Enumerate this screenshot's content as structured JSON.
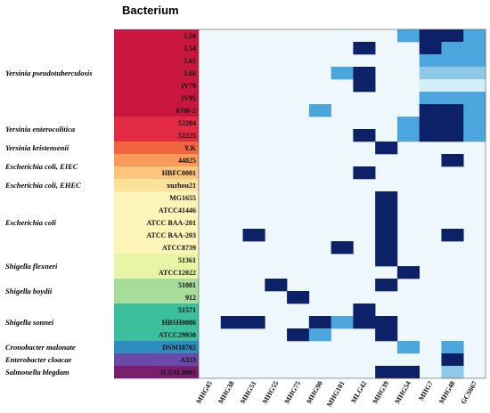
{
  "chart_data": {
    "type": "heatmap",
    "title": "Bacterium",
    "columns": [
      "MHG45",
      "MHG38",
      "MHG51",
      "MHG55",
      "MHG75",
      "MHG90",
      "MHG101",
      "MLG42",
      "MHG39",
      "MHG54",
      "MHG7",
      "MHG48",
      "GCS667"
    ],
    "rows": [
      {
        "strain": "I.50",
        "color": "#c8163f"
      },
      {
        "strain": "I.54",
        "color": "#c8163f"
      },
      {
        "strain": "I.61",
        "color": "#c8163f"
      },
      {
        "strain": "I.66",
        "color": "#c8163f"
      },
      {
        "strain": "IV79",
        "color": "#c8163f"
      },
      {
        "strain": "IV95",
        "color": "#c8163f"
      },
      {
        "strain": "0706-2",
        "color": "#c8163f"
      },
      {
        "strain": "52204",
        "color": "#e32a45"
      },
      {
        "strain": "52225",
        "color": "#e32a45"
      },
      {
        "strain": "Y.K",
        "color": "#f2663f"
      },
      {
        "strain": "44825",
        "color": "#f79a5a"
      },
      {
        "strain": "HBFC0001",
        "color": "#fbc57e"
      },
      {
        "strain": "xuzhou21",
        "color": "#fce19a"
      },
      {
        "strain": "MG1655",
        "color": "#fdf4b8"
      },
      {
        "strain": "ATCC41446",
        "color": "#fdf4b8"
      },
      {
        "strain": "ATCC BAA-201",
        "color": "#fdf4b8"
      },
      {
        "strain": "ATCC BAA-203",
        "color": "#fdf4b8"
      },
      {
        "strain": "ATCC8739",
        "color": "#fdf4b8"
      },
      {
        "strain": "51361",
        "color": "#e9f5a6"
      },
      {
        "strain": "ATCC12022",
        "color": "#e9f5a6"
      },
      {
        "strain": "51081",
        "color": "#a8dc9d"
      },
      {
        "strain": "912",
        "color": "#a8dc9d"
      },
      {
        "strain": "51571",
        "color": "#3cbf9d"
      },
      {
        "strain": "HBSH0086",
        "color": "#3cbf9d"
      },
      {
        "strain": "ATCC29930",
        "color": "#3cbf9d"
      },
      {
        "strain": "DSM18702",
        "color": "#2f8cbf"
      },
      {
        "strain": "A333",
        "color": "#6a4aa8"
      },
      {
        "strain": "JLSAL0003",
        "color": "#7a1f6e"
      }
    ],
    "species": [
      {
        "name": "Yersinia pseudotuberculosis",
        "first_row": 0,
        "last_row": 6
      },
      {
        "name": "Yersinia enterocolitica",
        "first_row": 7,
        "last_row": 8
      },
      {
        "name": "Yersinia kristensenii",
        "first_row": 9,
        "last_row": 9
      },
      {
        "name": "Escherichia coli, EIEC",
        "first_row": 10,
        "last_row": 11
      },
      {
        "name": "Escherichia coli, EHEC",
        "first_row": 12,
        "last_row": 12
      },
      {
        "name": "Escherichia coli",
        "first_row": 13,
        "last_row": 17
      },
      {
        "name": "Shigella flexneri",
        "first_row": 18,
        "last_row": 19
      },
      {
        "name": "Shigella boydii",
        "first_row": 20,
        "last_row": 21
      },
      {
        "name": "Shigella sonnei",
        "first_row": 22,
        "last_row": 24
      },
      {
        "name": "Cronobacter malonate",
        "first_row": 25,
        "last_row": 25
      },
      {
        "name": "Enterobacter cloacae",
        "first_row": 26,
        "last_row": 26
      },
      {
        "name": "Salmonella blegdam",
        "first_row": 27,
        "last_row": 27
      }
    ],
    "level_colors": {
      "0": "#eef7fb",
      "1": "#d4eef9",
      "2": "#8ec9e8",
      "3": "#4aa6dc",
      "4": "#0c2168"
    },
    "values": [
      [
        0,
        0,
        0,
        0,
        0,
        0,
        0,
        0,
        0,
        3,
        4,
        4,
        3
      ],
      [
        0,
        0,
        0,
        0,
        0,
        0,
        0,
        4,
        0,
        0,
        4,
        3,
        3
      ],
      [
        0,
        0,
        0,
        0,
        0,
        0,
        0,
        0,
        0,
        0,
        3,
        3,
        3
      ],
      [
        0,
        0,
        0,
        0,
        0,
        0,
        3,
        4,
        0,
        0,
        2,
        2,
        2
      ],
      [
        0,
        0,
        0,
        0,
        0,
        0,
        0,
        4,
        0,
        0,
        1,
        1,
        1
      ],
      [
        0,
        0,
        0,
        0,
        0,
        0,
        0,
        0,
        0,
        0,
        3,
        3,
        3
      ],
      [
        0,
        0,
        0,
        0,
        0,
        3,
        0,
        0,
        0,
        0,
        4,
        4,
        3
      ],
      [
        0,
        0,
        0,
        0,
        0,
        0,
        0,
        0,
        0,
        3,
        4,
        4,
        3
      ],
      [
        0,
        0,
        0,
        0,
        0,
        0,
        0,
        4,
        0,
        3,
        4,
        4,
        3
      ],
      [
        0,
        0,
        0,
        0,
        0,
        0,
        0,
        0,
        4,
        0,
        0,
        0,
        0
      ],
      [
        0,
        0,
        0,
        0,
        0,
        0,
        0,
        0,
        0,
        0,
        0,
        4,
        0
      ],
      [
        0,
        0,
        0,
        0,
        0,
        0,
        0,
        4,
        0,
        0,
        0,
        0,
        0
      ],
      [
        0,
        0,
        0,
        0,
        0,
        0,
        0,
        0,
        0,
        0,
        0,
        0,
        0
      ],
      [
        0,
        0,
        0,
        0,
        0,
        0,
        0,
        0,
        4,
        0,
        0,
        0,
        0
      ],
      [
        0,
        0,
        0,
        0,
        0,
        0,
        0,
        0,
        4,
        0,
        0,
        0,
        0
      ],
      [
        0,
        0,
        0,
        0,
        0,
        0,
        0,
        0,
        4,
        0,
        0,
        0,
        0
      ],
      [
        0,
        0,
        4,
        0,
        0,
        0,
        0,
        0,
        4,
        0,
        0,
        4,
        0
      ],
      [
        0,
        0,
        0,
        0,
        0,
        0,
        4,
        0,
        4,
        0,
        0,
        0,
        0
      ],
      [
        0,
        0,
        0,
        0,
        0,
        0,
        0,
        0,
        4,
        0,
        0,
        0,
        0
      ],
      [
        0,
        0,
        0,
        0,
        0,
        0,
        0,
        0,
        0,
        4,
        0,
        0,
        0
      ],
      [
        0,
        0,
        0,
        4,
        0,
        0,
        0,
        0,
        4,
        0,
        0,
        0,
        0
      ],
      [
        0,
        0,
        0,
        0,
        4,
        0,
        0,
        0,
        0,
        0,
        0,
        0,
        0
      ],
      [
        0,
        0,
        0,
        0,
        0,
        0,
        0,
        4,
        0,
        0,
        0,
        0,
        0
      ],
      [
        0,
        4,
        4,
        0,
        0,
        4,
        3,
        4,
        4,
        0,
        0,
        0,
        0
      ],
      [
        0,
        0,
        0,
        0,
        4,
        3,
        0,
        0,
        4,
        0,
        0,
        0,
        0
      ],
      [
        0,
        0,
        0,
        0,
        0,
        0,
        0,
        0,
        0,
        3,
        0,
        3,
        0
      ],
      [
        0,
        0,
        0,
        0,
        0,
        0,
        0,
        0,
        0,
        0,
        0,
        4,
        0
      ],
      [
        0,
        0,
        0,
        0,
        0,
        0,
        0,
        0,
        4,
        4,
        0,
        2,
        0
      ]
    ]
  }
}
